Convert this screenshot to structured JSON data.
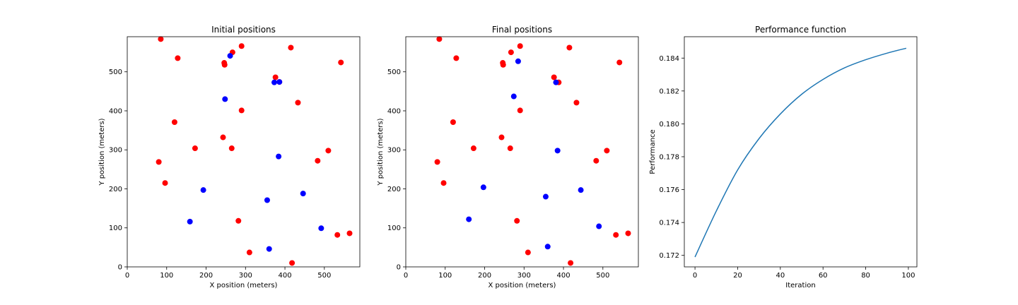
{
  "chart_data": [
    {
      "type": "scatter",
      "title": "Initial positions",
      "xlabel": "X position (meters)",
      "ylabel": "Y position (meters)",
      "xlim": [
        0,
        590
      ],
      "ylim": [
        0,
        590
      ],
      "xticks": [
        0,
        100,
        200,
        300,
        400,
        500
      ],
      "yticks": [
        0,
        100,
        200,
        300,
        400,
        500
      ],
      "grid": false,
      "series": [
        {
          "color": "#ff0000",
          "points": [
            [
              85,
              584
            ],
            [
              128,
              535
            ],
            [
              267,
              550
            ],
            [
              290,
              566
            ],
            [
              415,
              562
            ],
            [
              542,
              524
            ],
            [
              246,
              523
            ],
            [
              247,
              518
            ],
            [
              376,
              486
            ],
            [
              433,
              421
            ],
            [
              290,
              401
            ],
            [
              120,
              371
            ],
            [
              172,
              304
            ],
            [
              243,
              332
            ],
            [
              265,
              304
            ],
            [
              510,
              298
            ],
            [
              80,
              269
            ],
            [
              483,
              272
            ],
            [
              96,
              215
            ],
            [
              282,
              118
            ],
            [
              533,
              82
            ],
            [
              564,
              86
            ],
            [
              310,
              37
            ],
            [
              418,
              10
            ],
            [
              386,
              474
            ]
          ]
        },
        {
          "color": "#0000ff",
          "points": [
            [
              261,
              541
            ],
            [
              373,
              473
            ],
            [
              386,
              474
            ],
            [
              248,
              430
            ],
            [
              384,
              283
            ],
            [
              193,
              197
            ],
            [
              446,
              188
            ],
            [
              355,
              171
            ],
            [
              159,
              116
            ],
            [
              492,
              99
            ],
            [
              360,
              46
            ]
          ]
        }
      ]
    },
    {
      "type": "scatter",
      "title": "Final positions",
      "xlabel": "X position (meters)",
      "ylabel": "Y position (meters)",
      "xlim": [
        0,
        590
      ],
      "ylim": [
        0,
        590
      ],
      "xticks": [
        0,
        100,
        200,
        300,
        400,
        500
      ],
      "yticks": [
        0,
        100,
        200,
        300,
        400,
        500
      ],
      "grid": false,
      "series": [
        {
          "color": "#ff0000",
          "points": [
            [
              85,
              584
            ],
            [
              128,
              535
            ],
            [
              267,
              550
            ],
            [
              290,
              566
            ],
            [
              415,
              562
            ],
            [
              542,
              524
            ],
            [
              246,
              523
            ],
            [
              247,
              518
            ],
            [
              376,
              486
            ],
            [
              433,
              421
            ],
            [
              290,
              401
            ],
            [
              120,
              371
            ],
            [
              172,
              304
            ],
            [
              243,
              332
            ],
            [
              265,
              304
            ],
            [
              510,
              298
            ],
            [
              80,
              269
            ],
            [
              483,
              272
            ],
            [
              96,
              215
            ],
            [
              282,
              118
            ],
            [
              533,
              82
            ],
            [
              564,
              86
            ],
            [
              310,
              37
            ],
            [
              418,
              10
            ],
            [
              388,
              473
            ]
          ]
        },
        {
          "color": "#0000ff",
          "points": [
            [
              285,
              527
            ],
            [
              274,
              437
            ],
            [
              381,
              473
            ],
            [
              385,
              298
            ],
            [
              197,
              204
            ],
            [
              444,
              197
            ],
            [
              355,
              180
            ],
            [
              160,
              122
            ],
            [
              490,
              104
            ],
            [
              360,
              52
            ]
          ]
        }
      ]
    },
    {
      "type": "line",
      "title": "Performance function",
      "xlabel": "Iteration",
      "ylabel": "Performance",
      "xlim": [
        -5,
        104
      ],
      "ylim": [
        0.1713,
        0.1853
      ],
      "xticks": [
        0,
        20,
        40,
        60,
        80,
        100
      ],
      "yticks": [
        0.172,
        0.174,
        0.176,
        0.178,
        0.18,
        0.182,
        0.184
      ],
      "ytick_labels": [
        "0.172",
        "0.174",
        "0.176",
        "0.178",
        "0.180",
        "0.182",
        "0.184"
      ],
      "grid": false,
      "series": [
        {
          "color": "#1f77b4",
          "x": [
            0,
            10,
            20,
            30,
            40,
            50,
            60,
            70,
            80,
            90,
            99
          ],
          "y": [
            0.1719,
            0.1747,
            0.1772,
            0.1791,
            0.1806,
            0.1818,
            0.1827,
            0.1834,
            0.1839,
            0.1843,
            0.1846
          ]
        }
      ]
    }
  ]
}
